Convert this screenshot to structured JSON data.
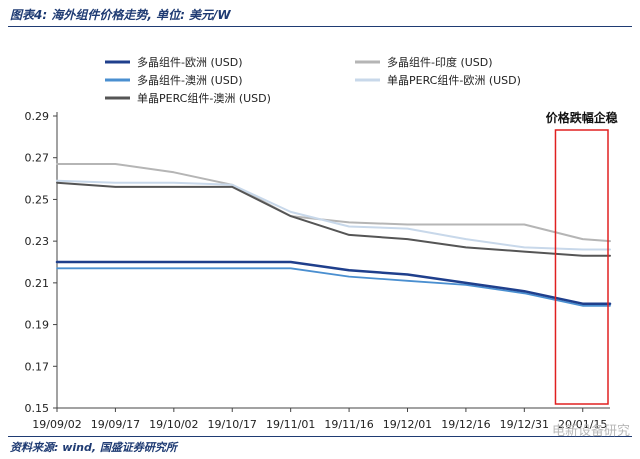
{
  "header": {
    "title": "图表4: 海外组件价格走势, 单位: 美元/W"
  },
  "footer": {
    "source": "资料来源: wind, 国盛证券研究所",
    "watermark": "电新设备研究"
  },
  "chart_data": {
    "type": "line",
    "x": [
      "19/09/02",
      "19/09/17",
      "19/10/02",
      "19/10/17",
      "19/11/01",
      "19/11/16",
      "19/12/01",
      "19/12/16",
      "19/12/31",
      "20/01/15",
      "20/01/22"
    ],
    "xticks": [
      "19/09/02",
      "19/09/17",
      "19/10/02",
      "19/10/17",
      "19/11/01",
      "19/11/16",
      "19/12/01",
      "19/12/16",
      "19/12/31",
      "20/01/15"
    ],
    "ylim": [
      0.15,
      0.29
    ],
    "yticks": [
      "0.15",
      "0.17",
      "0.19",
      "0.21",
      "0.23",
      "0.25",
      "0.27",
      "0.29"
    ],
    "series": [
      {
        "name": "多晶组件-欧洲 (USD)",
        "color": "#1f3f8c",
        "width": 2.5,
        "values": [
          0.22,
          0.22,
          0.22,
          0.22,
          0.22,
          0.216,
          0.214,
          0.21,
          0.206,
          0.2,
          0.2
        ]
      },
      {
        "name": "多晶组件-印度 (USD)",
        "color": "#b5b5b5",
        "width": 2,
        "values": [
          0.267,
          0.267,
          0.263,
          0.257,
          0.242,
          0.239,
          0.238,
          0.238,
          0.238,
          0.231,
          0.23
        ]
      },
      {
        "name": "多晶组件-澳洲 (USD)",
        "color": "#4a8fd0",
        "width": 1.8,
        "values": [
          0.217,
          0.217,
          0.217,
          0.217,
          0.217,
          0.213,
          0.211,
          0.209,
          0.205,
          0.199,
          0.199
        ]
      },
      {
        "name": "单晶PERC组件-欧洲 (USD)",
        "color": "#c8d8ea",
        "width": 2,
        "values": [
          0.259,
          0.258,
          0.258,
          0.257,
          0.244,
          0.237,
          0.236,
          0.231,
          0.227,
          0.226,
          0.226
        ]
      },
      {
        "name": "单晶PERC组件-澳洲 (USD)",
        "color": "#555555",
        "width": 2,
        "values": [
          0.258,
          0.256,
          0.256,
          0.256,
          0.242,
          0.233,
          0.231,
          0.227,
          0.225,
          0.223,
          0.223
        ]
      }
    ],
    "annotation": {
      "text": "价格跌幅企稳",
      "from": "20/01/08",
      "to": "20/01/22",
      "color": "#e02020"
    }
  }
}
